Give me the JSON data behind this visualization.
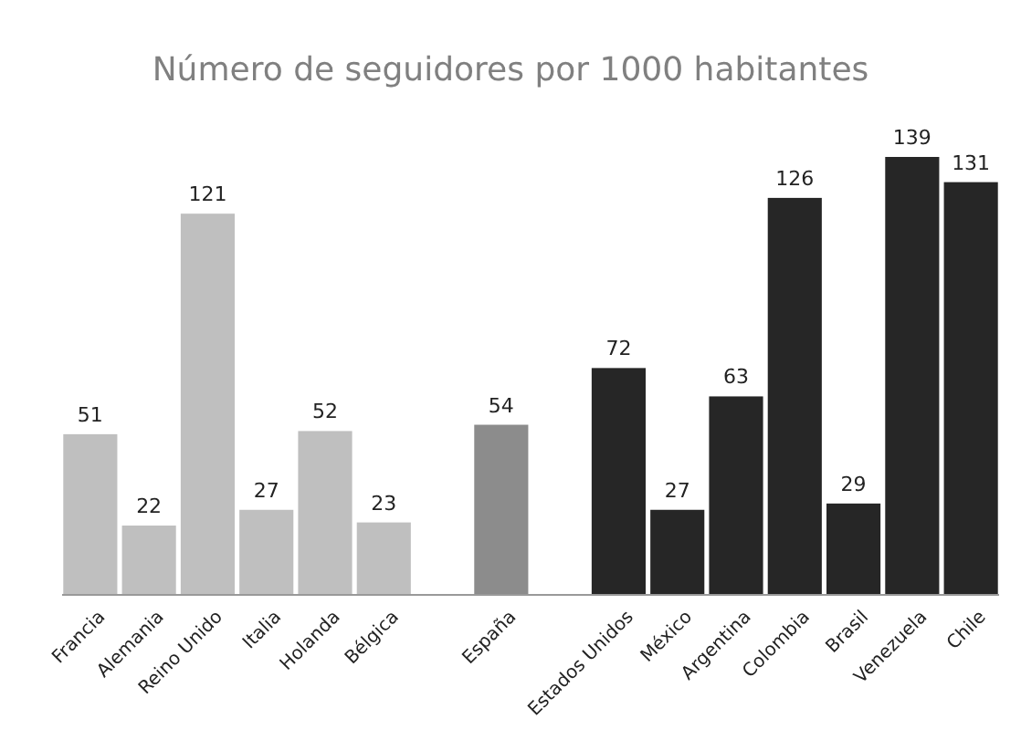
{
  "chart_data": {
    "type": "bar",
    "title": "Número de seguidores por 1000 habitantes",
    "categories": [
      "Francia",
      "Alemania",
      "Reino Unido",
      "Italia",
      "Holanda",
      "Bélgica",
      null,
      "España",
      null,
      "Estados Unidos",
      "México",
      "Argentina",
      "Colombia",
      "Brasil",
      "Venezuela",
      "Chile"
    ],
    "values": [
      51,
      22,
      121,
      27,
      52,
      23,
      null,
      54,
      null,
      72,
      27,
      63,
      126,
      29,
      139,
      131
    ],
    "colors": [
      "#bfbfbf",
      "#bfbfbf",
      "#bfbfbf",
      "#bfbfbf",
      "#bfbfbf",
      "#bfbfbf",
      null,
      "#8c8c8c",
      null,
      "#262626",
      "#262626",
      "#262626",
      "#262626",
      "#262626",
      "#262626",
      "#262626"
    ],
    "data_labels": true
  }
}
